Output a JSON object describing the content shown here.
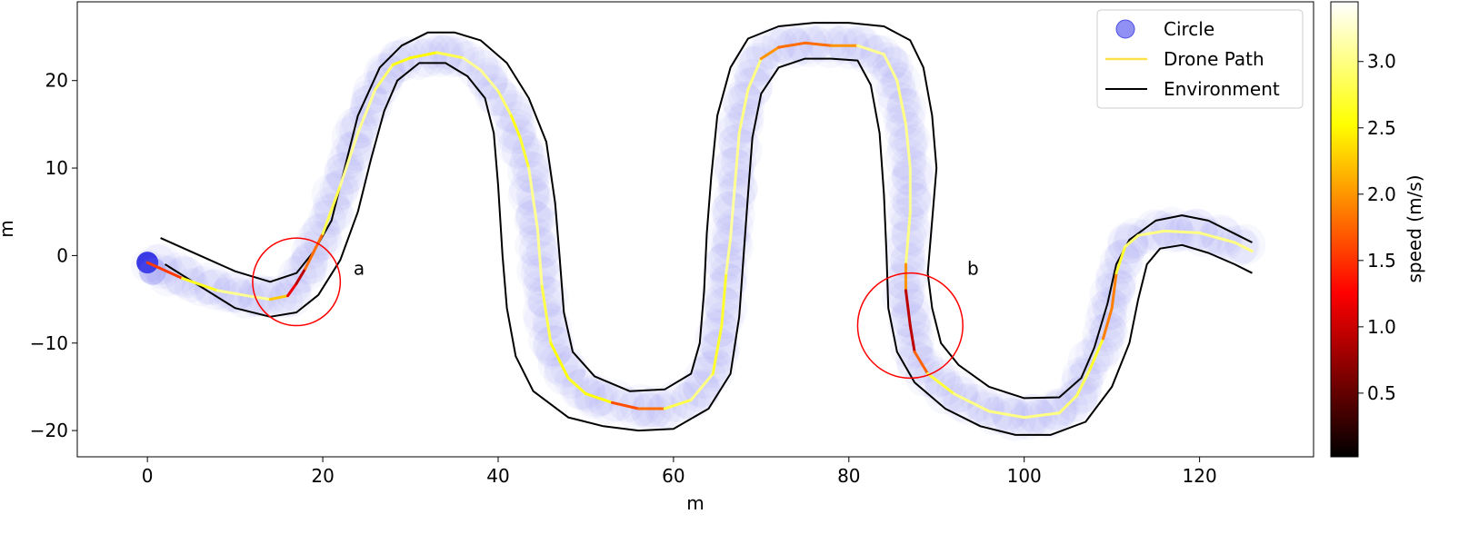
{
  "chart_data": {
    "type": "line",
    "title": "",
    "xlabel": "m",
    "ylabel": "m",
    "xlim": [
      -8,
      133
    ],
    "ylim": [
      -23,
      29
    ],
    "x_ticks": [
      0,
      20,
      40,
      60,
      80,
      100,
      120
    ],
    "x_tick_labels": [
      "0",
      "20",
      "40",
      "60",
      "80",
      "100",
      "120"
    ],
    "y_ticks": [
      -20,
      -10,
      0,
      10,
      20
    ],
    "y_tick_labels": [
      "−20",
      "−10",
      "0",
      "10",
      "20"
    ],
    "legend_position": "top-right",
    "legend": [
      {
        "label": "Circle",
        "kind": "marker",
        "color": "#6a6af0"
      },
      {
        "label": "Drone Path",
        "kind": "line",
        "color": "#ffe24a"
      },
      {
        "label": "Environment",
        "kind": "line",
        "color": "#000000"
      }
    ],
    "circle_color": "#5a5af0",
    "environment_color": "#000000",
    "colorbar": {
      "label": "speed (m/s)",
      "range": [
        0.02,
        3.45
      ],
      "ticks": [
        0.5,
        1.0,
        1.5,
        2.0,
        2.5,
        3.0
      ],
      "tick_labels": [
        "0.5",
        "1.0",
        "1.5",
        "2.0",
        "2.5",
        "3.0"
      ],
      "colormap": "hot"
    },
    "path": [
      [
        0,
        -0.8
      ],
      [
        4,
        -2.6
      ],
      [
        8,
        -4.0
      ],
      [
        12,
        -4.7
      ],
      [
        14,
        -5.0
      ],
      [
        16,
        -4.6
      ],
      [
        17,
        -3.2
      ],
      [
        18,
        -1.5
      ],
      [
        20,
        2.5
      ],
      [
        22,
        8
      ],
      [
        24,
        14
      ],
      [
        26,
        19
      ],
      [
        28,
        21.8
      ],
      [
        30,
        22.6
      ],
      [
        33,
        23.2
      ],
      [
        36,
        22.6
      ],
      [
        38,
        21.2
      ],
      [
        40,
        18.8
      ],
      [
        41.5,
        16.0
      ],
      [
        42.5,
        13.5
      ],
      [
        43.5,
        10.0
      ],
      [
        44.5,
        3.0
      ],
      [
        45,
        -3.5
      ],
      [
        46,
        -10.0
      ],
      [
        48,
        -14.0
      ],
      [
        50,
        -15.8
      ],
      [
        53,
        -16.8
      ],
      [
        56,
        -17.5
      ],
      [
        59,
        -17.5
      ],
      [
        62,
        -16.5
      ],
      [
        64.5,
        -13.5
      ],
      [
        65.5,
        -8.0
      ],
      [
        66,
        -2.0
      ],
      [
        66.5,
        2.0
      ],
      [
        67,
        8.0
      ],
      [
        67.5,
        14.0
      ],
      [
        68.5,
        19.0
      ],
      [
        70,
        22.5
      ],
      [
        72,
        23.8
      ],
      [
        75,
        24.3
      ],
      [
        78,
        24.0
      ],
      [
        81,
        24.0
      ],
      [
        84,
        23.0
      ],
      [
        85.5,
        20.0
      ],
      [
        86.5,
        15.0
      ],
      [
        87,
        10.0
      ],
      [
        87,
        5.0
      ],
      [
        86.5,
        -1.0
      ],
      [
        86.5,
        -4.0
      ],
      [
        87,
        -8.0
      ],
      [
        87.5,
        -11.0
      ],
      [
        89,
        -13.5
      ],
      [
        92,
        -15.8
      ],
      [
        96,
        -17.8
      ],
      [
        100,
        -18.5
      ],
      [
        104,
        -18.0
      ],
      [
        106,
        -16.0
      ],
      [
        107.5,
        -13.0
      ],
      [
        109,
        -9.5
      ],
      [
        110,
        -6.0
      ],
      [
        110.5,
        -2.0
      ],
      [
        111.5,
        1.0
      ],
      [
        113,
        2.3
      ],
      [
        116,
        2.8
      ],
      [
        120,
        2.6
      ],
      [
        124,
        1.5
      ],
      [
        126,
        0.5
      ]
    ],
    "path_speed": [
      0.8,
      2.3,
      3.0,
      3.1,
      3.0,
      1.5,
      0.9,
      1.0,
      2.6,
      3.0,
      3.1,
      3.0,
      2.8,
      2.4,
      2.6,
      3.0,
      3.1,
      3.0,
      2.8,
      2.4,
      3.0,
      3.1,
      3.0,
      2.6,
      2.5,
      2.8,
      2.3,
      1.0,
      2.6,
      3.0,
      3.0,
      2.4,
      3.0,
      3.1,
      3.1,
      3.0,
      3.0,
      3.0,
      1.0,
      2.6,
      1.0,
      3.0,
      3.1,
      3.0,
      3.0,
      3.1,
      3.0,
      3.0,
      1.0,
      0.9,
      1.0,
      2.5,
      3.0,
      3.0,
      3.0,
      3.0,
      2.9,
      2.8,
      2.6,
      1.2,
      2.6,
      2.8,
      3.0,
      3.0,
      3.0,
      3.0,
      3.0
    ],
    "environment_outer": [
      [
        1.5,
        2.0
      ],
      [
        6,
        0.0
      ],
      [
        10,
        -1.8
      ],
      [
        14,
        -3.0
      ],
      [
        17,
        -2.0
      ],
      [
        19,
        0.5
      ],
      [
        21,
        4
      ],
      [
        22.5,
        10
      ],
      [
        24,
        16
      ],
      [
        26.5,
        21.5
      ],
      [
        29,
        24.0
      ],
      [
        32,
        25.5
      ],
      [
        35,
        25.5
      ],
      [
        38,
        24.6
      ],
      [
        41,
        22.0
      ],
      [
        43.5,
        18.0
      ],
      [
        45.5,
        13.0
      ],
      [
        46.5,
        6.0
      ],
      [
        47,
        0.0
      ],
      [
        47.5,
        -6.5
      ],
      [
        48.5,
        -11.0
      ],
      [
        51,
        -13.8
      ],
      [
        55,
        -15.5
      ],
      [
        59,
        -15.3
      ],
      [
        62,
        -13.5
      ],
      [
        63,
        -10.0
      ],
      [
        63.5,
        -4.0
      ],
      [
        63.8,
        2.5
      ],
      [
        64.3,
        9.0
      ],
      [
        65,
        16.0
      ],
      [
        66.5,
        21.5
      ],
      [
        68.5,
        24.8
      ],
      [
        72,
        26.2
      ],
      [
        76,
        26.6
      ],
      [
        80,
        26.6
      ],
      [
        84,
        26.2
      ],
      [
        87,
        24.6
      ],
      [
        88.5,
        21.5
      ],
      [
        89.5,
        16.0
      ],
      [
        90,
        10.0
      ],
      [
        89.5,
        4.0
      ],
      [
        89.0,
        -2.0
      ],
      [
        89.5,
        -6.0
      ],
      [
        90.5,
        -10.0
      ],
      [
        92.5,
        -12.5
      ],
      [
        96,
        -15.0
      ],
      [
        100,
        -16.3
      ],
      [
        104,
        -16.2
      ],
      [
        106.5,
        -14.0
      ],
      [
        108,
        -10.5
      ],
      [
        109.5,
        -5.5
      ],
      [
        110.5,
        -1.0
      ],
      [
        112,
        1.8
      ],
      [
        115,
        4.0
      ],
      [
        118,
        4.6
      ],
      [
        121,
        4.0
      ],
      [
        124,
        2.5
      ],
      [
        126,
        1.5
      ]
    ],
    "environment_inner": [
      [
        2,
        -1.0
      ],
      [
        6,
        -3.5
      ],
      [
        10,
        -6.0
      ],
      [
        14,
        -7.0
      ],
      [
        17,
        -6.5
      ],
      [
        19.5,
        -4.5
      ],
      [
        22,
        -0.5
      ],
      [
        24,
        5
      ],
      [
        25.5,
        11
      ],
      [
        27,
        16.5
      ],
      [
        28.5,
        20.0
      ],
      [
        31,
        22.0
      ],
      [
        34,
        22.0
      ],
      [
        36.5,
        20.5
      ],
      [
        38.5,
        18.0
      ],
      [
        39.5,
        14.0
      ],
      [
        40,
        8.0
      ],
      [
        40.5,
        0.0
      ],
      [
        41,
        -6.0
      ],
      [
        42,
        -11.5
      ],
      [
        44,
        -15.5
      ],
      [
        48,
        -18.5
      ],
      [
        52,
        -19.5
      ],
      [
        56,
        -20.0
      ],
      [
        60,
        -19.8
      ],
      [
        64,
        -17.5
      ],
      [
        66.5,
        -13.5
      ],
      [
        67.5,
        -7.0
      ],
      [
        68,
        0.0
      ],
      [
        68.5,
        7.0
      ],
      [
        69,
        13.5
      ],
      [
        70,
        18.5
      ],
      [
        72,
        21.5
      ],
      [
        75,
        22.5
      ],
      [
        78,
        22.5
      ],
      [
        81,
        22.3
      ],
      [
        82.5,
        19.5
      ],
      [
        83.5,
        14.0
      ],
      [
        84,
        7.0
      ],
      [
        84.3,
        0.0
      ],
      [
        84.5,
        -6.0
      ],
      [
        85.5,
        -11.0
      ],
      [
        87.5,
        -14.5
      ],
      [
        91,
        -17.5
      ],
      [
        95,
        -19.5
      ],
      [
        99,
        -20.5
      ],
      [
        103,
        -20.5
      ],
      [
        107,
        -19.0
      ],
      [
        110,
        -15.0
      ],
      [
        112,
        -10.0
      ],
      [
        113,
        -5.0
      ],
      [
        114,
        -1.0
      ],
      [
        115.5,
        0.8
      ],
      [
        118,
        1.2
      ],
      [
        121,
        0.3
      ],
      [
        124,
        -1.0
      ],
      [
        126,
        -2.0
      ]
    ],
    "annotations": [
      {
        "label": "a",
        "center": [
          17,
          -3
        ],
        "radius": 5.0,
        "text_at": [
          23.5,
          -2.2
        ]
      },
      {
        "label": "b",
        "center": [
          87,
          -8
        ],
        "radius": 6.0,
        "text_at": [
          93.5,
          -2.2
        ]
      }
    ]
  }
}
